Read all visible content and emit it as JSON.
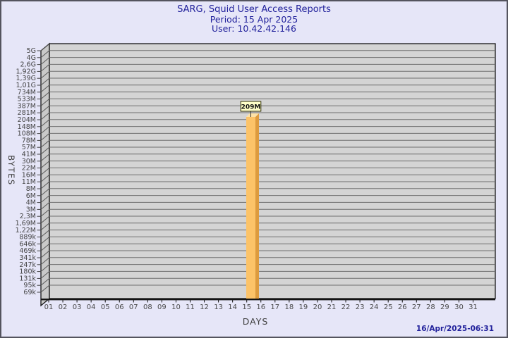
{
  "header": {
    "title": "SARG, Squid User Access Reports",
    "period": "Period: 15 Apr 2025",
    "user": "User: 10.42.42.146"
  },
  "footer": {
    "timestamp": "16/Apr/2025-06:31"
  },
  "colors": {
    "background": "#e6e6f8",
    "page_border": "#54545e",
    "title_text": "#22229c",
    "plot_back_wall": "#d4d4d4",
    "plot_left_wall": "#c9c9c9",
    "gridline": "#6e6e6e",
    "plot_edge": "#141414",
    "axis_text": "#434343",
    "bar_face": "#fcc368",
    "bar_side": "#dd9b3e",
    "bar_top": "#fde2a7",
    "value_label_bg": "#ffffc8",
    "value_label_border": "#31310a",
    "value_label_text": "#111111"
  },
  "chart_data": {
    "type": "bar",
    "title": "SARG, Squid User Access Reports",
    "subtitle_lines": [
      "Period: 15 Apr 2025",
      "User: 10.42.42.146"
    ],
    "xlabel": "DAYS",
    "ylabel": "BYTES",
    "grid": true,
    "legend": null,
    "x_tick_labels": [
      "01",
      "02",
      "03",
      "04",
      "05",
      "06",
      "07",
      "08",
      "09",
      "10",
      "11",
      "12",
      "13",
      "14",
      "15",
      "16",
      "17",
      "18",
      "19",
      "20",
      "21",
      "22",
      "23",
      "24",
      "25",
      "26",
      "27",
      "28",
      "29",
      "30",
      "31"
    ],
    "y_tick_labels": [
      "5G",
      "4G",
      "2,6G",
      "1,92G",
      "1,39G",
      "1,01G",
      "734M",
      "533M",
      "387M",
      "281M",
      "204M",
      "148M",
      "108M",
      "78M",
      "57M",
      "41M",
      "30M",
      "22M",
      "16M",
      "11M",
      "8M",
      "6M",
      "4M",
      "3M",
      "2,3M",
      "1,69M",
      "1,22M",
      "889k",
      "646k",
      "469k",
      "341k",
      "247k",
      "180k",
      "131k",
      "95k",
      "69k"
    ],
    "bars": [
      {
        "category": "15",
        "value_label": "209M"
      }
    ]
  }
}
